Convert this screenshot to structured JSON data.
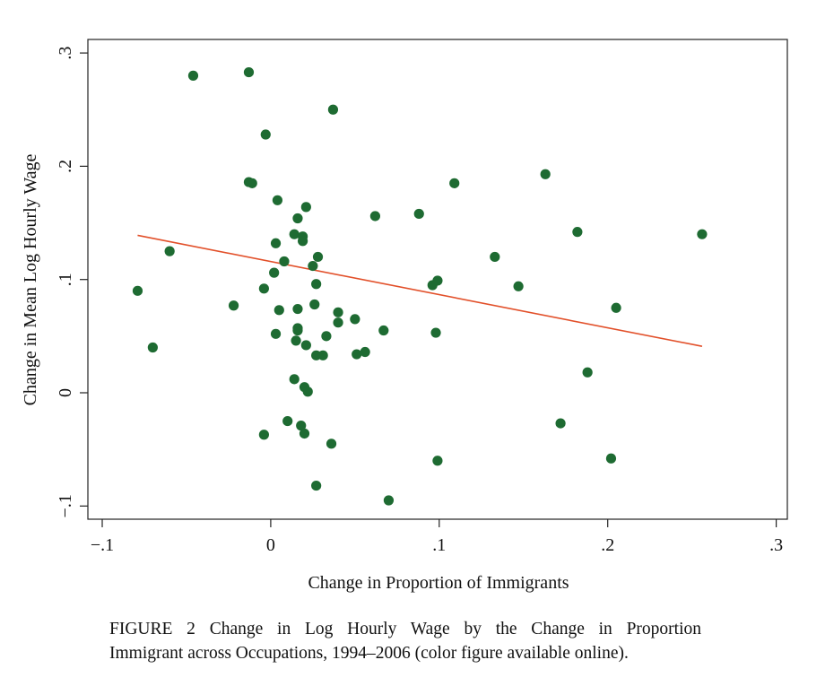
{
  "chart_data": {
    "type": "scatter",
    "xlabel": "Change in Proportion of Immigrants",
    "ylabel": "Change in Mean Log Hourly Wage",
    "xlim": [
      -0.1,
      0.3
    ],
    "ylim": [
      -0.1,
      0.3
    ],
    "xticks": [
      -0.1,
      0,
      0.1,
      0.2,
      0.3
    ],
    "xtick_labels": [
      "−.1",
      "0",
      ".1",
      ".2",
      ".3"
    ],
    "yticks": [
      -0.1,
      0,
      0.1,
      0.2,
      0.3
    ],
    "ytick_labels": [
      "−.1",
      "0",
      ".1",
      ".2",
      ".3"
    ],
    "grid": false,
    "point_color": "#1e6b32",
    "fit_color": "#e2502a",
    "points": [
      [
        -0.046,
        0.28
      ],
      [
        -0.013,
        0.283
      ],
      [
        0.037,
        0.25
      ],
      [
        -0.003,
        0.228
      ],
      [
        -0.013,
        0.186
      ],
      [
        -0.011,
        0.185
      ],
      [
        0.163,
        0.193
      ],
      [
        0.109,
        0.185
      ],
      [
        0.004,
        0.17
      ],
      [
        0.021,
        0.164
      ],
      [
        0.016,
        0.154
      ],
      [
        0.062,
        0.156
      ],
      [
        0.088,
        0.158
      ],
      [
        0.182,
        0.142
      ],
      [
        0.256,
        0.14
      ],
      [
        0.014,
        0.14
      ],
      [
        0.019,
        0.138
      ],
      [
        0.019,
        0.134
      ],
      [
        0.003,
        0.132
      ],
      [
        -0.06,
        0.125
      ],
      [
        0.028,
        0.12
      ],
      [
        0.133,
        0.12
      ],
      [
        0.008,
        0.116
      ],
      [
        0.025,
        0.112
      ],
      [
        0.002,
        0.106
      ],
      [
        0.099,
        0.099
      ],
      [
        0.096,
        0.095
      ],
      [
        0.027,
        0.096
      ],
      [
        0.147,
        0.094
      ],
      [
        -0.004,
        0.092
      ],
      [
        -0.079,
        0.09
      ],
      [
        -0.022,
        0.077
      ],
      [
        0.026,
        0.078
      ],
      [
        0.005,
        0.073
      ],
      [
        0.016,
        0.074
      ],
      [
        0.04,
        0.071
      ],
      [
        0.205,
        0.075
      ],
      [
        0.05,
        0.065
      ],
      [
        0.04,
        0.062
      ],
      [
        0.016,
        0.057
      ],
      [
        0.016,
        0.055
      ],
      [
        0.067,
        0.055
      ],
      [
        0.098,
        0.053
      ],
      [
        0.003,
        0.052
      ],
      [
        0.033,
        0.05
      ],
      [
        0.015,
        0.046
      ],
      [
        0.021,
        0.042
      ],
      [
        -0.07,
        0.04
      ],
      [
        0.056,
        0.036
      ],
      [
        0.051,
        0.034
      ],
      [
        0.027,
        0.033
      ],
      [
        0.031,
        0.033
      ],
      [
        0.188,
        0.018
      ],
      [
        0.014,
        0.012
      ],
      [
        0.02,
        0.005
      ],
      [
        0.022,
        0.001
      ],
      [
        0.01,
        -0.025
      ],
      [
        0.018,
        -0.029
      ],
      [
        0.172,
        -0.027
      ],
      [
        -0.004,
        -0.037
      ],
      [
        0.02,
        -0.036
      ],
      [
        0.036,
        -0.045
      ],
      [
        0.099,
        -0.06
      ],
      [
        0.202,
        -0.058
      ],
      [
        0.027,
        -0.082
      ],
      [
        0.07,
        -0.095
      ]
    ],
    "fit_line": [
      [
        -0.079,
        0.139
      ],
      [
        0.256,
        0.041
      ]
    ]
  },
  "caption": {
    "line1": "FIGURE 2  Change in Log Hourly Wage by the Change in Proportion",
    "line2": "Immigrant across Occupations, 1994–2006 (color figure available online)."
  }
}
